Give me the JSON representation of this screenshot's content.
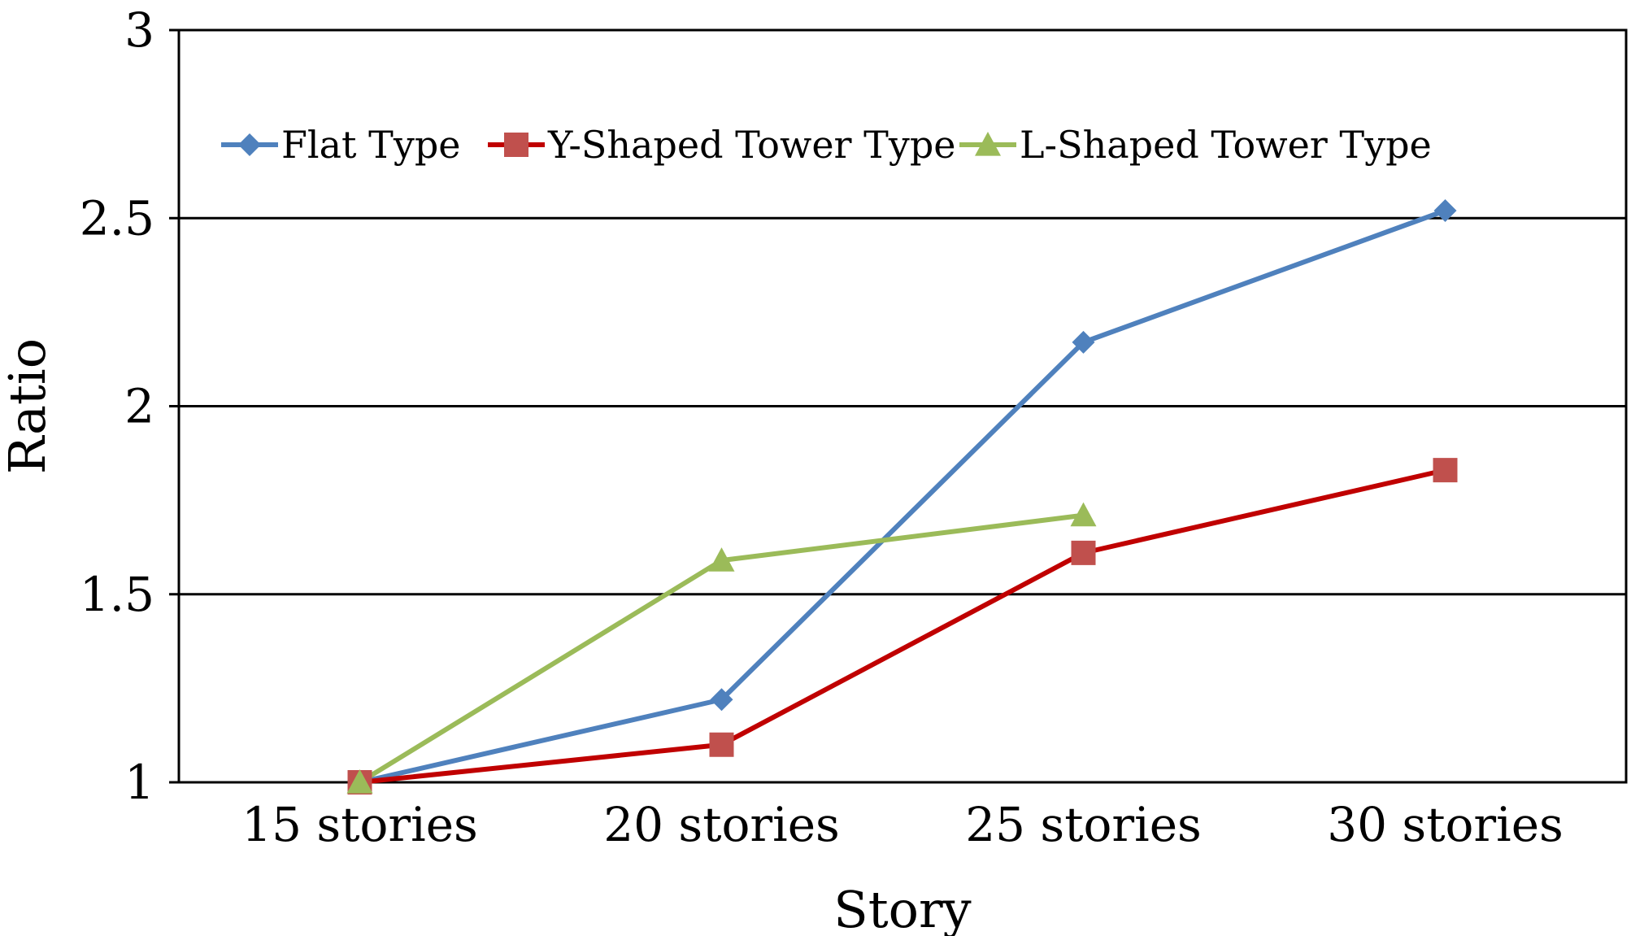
{
  "chart_data": {
    "type": "line",
    "title": "",
    "xlabel": "Story",
    "ylabel": "Ratio",
    "categories": [
      "15 stories",
      "20 stories",
      "25 stories",
      "30 stories"
    ],
    "ylim": [
      1,
      3
    ],
    "yticks": [
      "1",
      "1.5",
      "2",
      "2.5",
      "3"
    ],
    "grid": "horizontal",
    "legend_position": "top-left, inside plot",
    "series": [
      {
        "name": "Flat Type",
        "color": "#4f81bd",
        "marker": "diamond",
        "values": [
          1.0,
          1.22,
          2.17,
          2.52
        ]
      },
      {
        "name": "Y-Shaped Tower Type",
        "color": "#c0504d",
        "line_color": "#c00000",
        "marker": "square",
        "values": [
          1.0,
          1.1,
          1.61,
          1.83
        ]
      },
      {
        "name": "L-Shaped Tower Type",
        "color": "#9bbb59",
        "marker": "triangle",
        "values": [
          1.0,
          1.59,
          1.71,
          null
        ]
      }
    ]
  }
}
